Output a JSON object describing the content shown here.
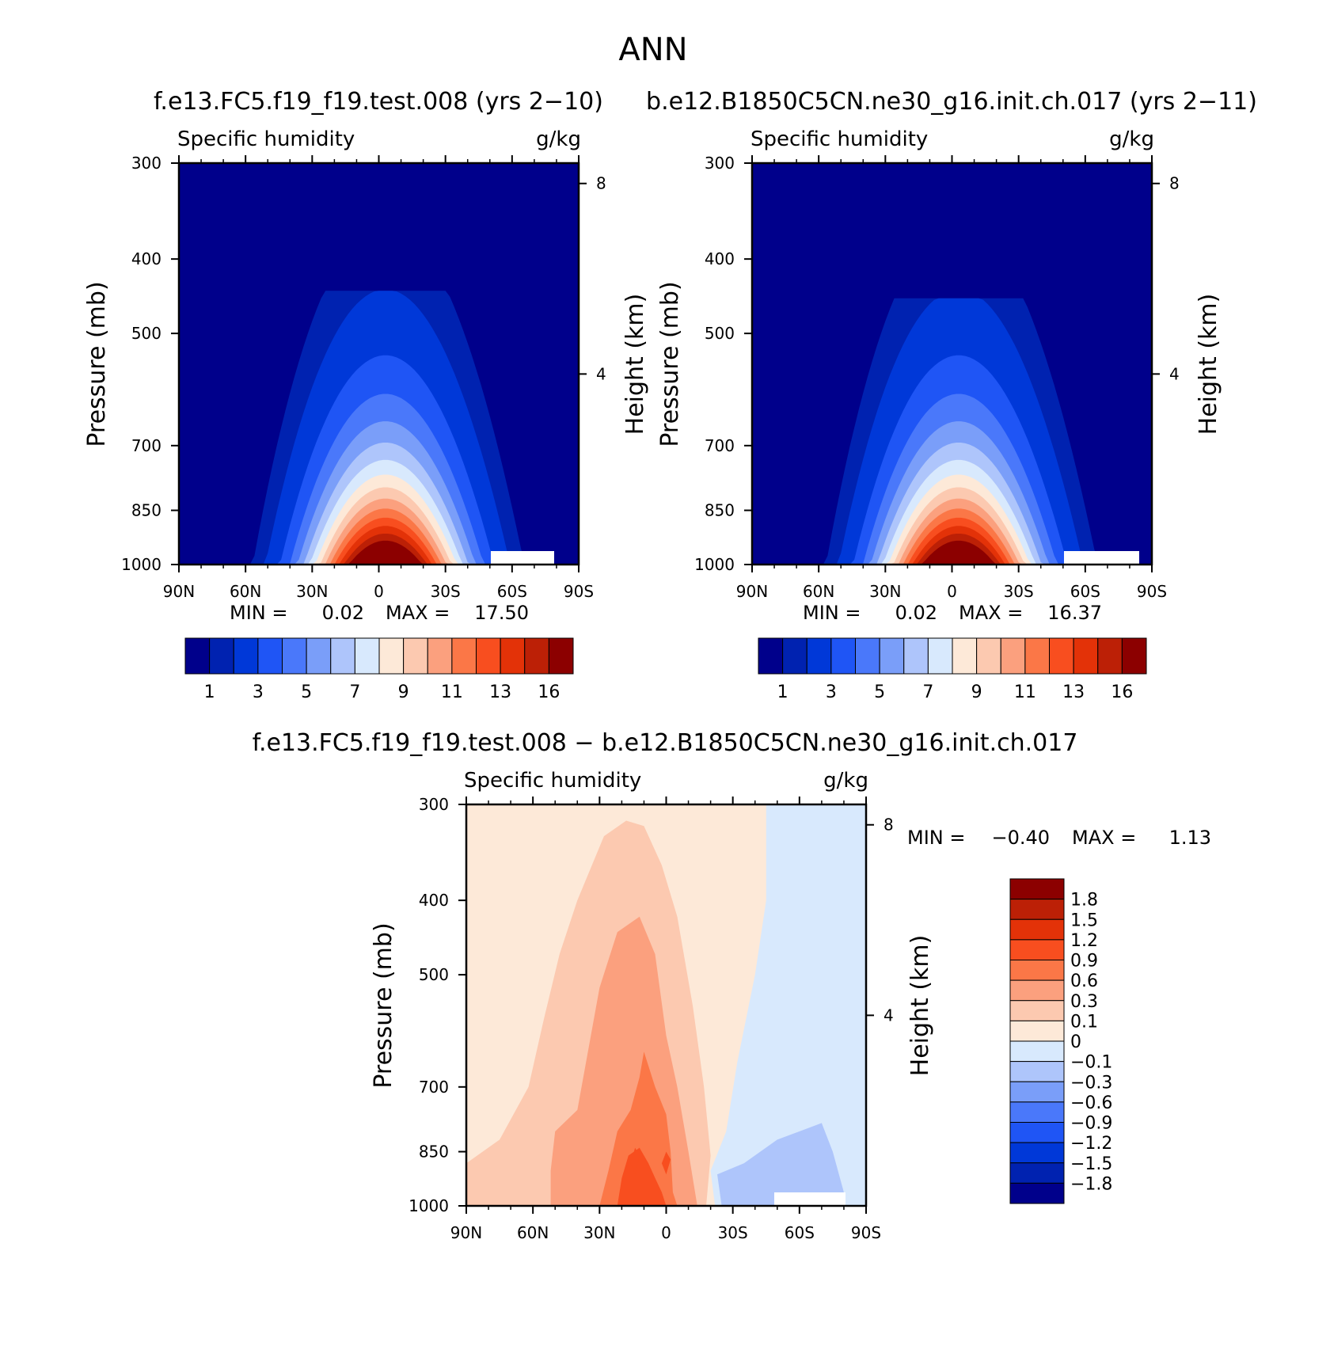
{
  "page": {
    "title": "ANN",
    "diff_title": "f.e13.FC5.f19_f19.test.008 − b.e12.B1850C5CN.ne30_g16.init.ch.017"
  },
  "chart_data": [
    {
      "type": "contour",
      "case_title": "f.e13.FC5.f19_f19.test.008 (yrs 2−10)",
      "variable": "Specific humidity",
      "units": "g/kg",
      "xlabel": "",
      "ylabel": "Pressure (mb)",
      "y2label": "Height (km)",
      "x_ticks": [
        "90N",
        "60N",
        "30N",
        "0",
        "30S",
        "60S",
        "90S"
      ],
      "y_ticks": [
        300,
        400,
        500,
        700,
        850,
        1000
      ],
      "y2_ticks": [
        8,
        4
      ],
      "min_label": "MIN =",
      "min": "0.02",
      "max_label": "MAX =",
      "max": "17.50",
      "levels_shown": [
        "1",
        "3",
        "5",
        "7",
        "9",
        "11",
        "13",
        "16"
      ],
      "peak_lat": -3,
      "top_pressure": 440,
      "colors": [
        "#00008b",
        "#0022b0",
        "#0038d8",
        "#1f55f5",
        "#4a78fa",
        "#7a9ef9",
        "#aec5fb",
        "#d8e9fd",
        "#fde9d8",
        "#fcc9b0",
        "#fba07e",
        "#fb7747",
        "#f84e1f",
        "#e33208",
        "#bc2006",
        "#8c0000"
      ]
    },
    {
      "type": "contour",
      "case_title": "b.e12.B1850C5CN.ne30_g16.init.ch.017 (yrs 2−11)",
      "variable": "Specific humidity",
      "units": "g/kg",
      "xlabel": "",
      "ylabel": "Pressure (mb)",
      "y2label": "Height (km)",
      "x_ticks": [
        "90N",
        "60N",
        "30N",
        "0",
        "30S",
        "60S",
        "90S"
      ],
      "y_ticks": [
        300,
        400,
        500,
        700,
        850,
        1000
      ],
      "y2_ticks": [
        8,
        4
      ],
      "min_label": "MIN =",
      "min": "0.02",
      "max_label": "MAX =",
      "max": "16.37",
      "levels_shown": [
        "1",
        "3",
        "5",
        "7",
        "9",
        "11",
        "13",
        "16"
      ],
      "peak_lat": -3,
      "top_pressure": 450,
      "colors": [
        "#00008b",
        "#0022b0",
        "#0038d8",
        "#1f55f5",
        "#4a78fa",
        "#7a9ef9",
        "#aec5fb",
        "#d8e9fd",
        "#fde9d8",
        "#fcc9b0",
        "#fba07e",
        "#fb7747",
        "#f84e1f",
        "#e33208",
        "#bc2006",
        "#8c0000"
      ]
    },
    {
      "type": "contour",
      "case_title": "",
      "variable": "Specific humidity",
      "units": "g/kg",
      "xlabel": "",
      "ylabel": "Pressure (mb)",
      "y2label": "Height (km)",
      "x_ticks": [
        "90N",
        "60N",
        "30N",
        "0",
        "30S",
        "60S",
        "90S"
      ],
      "y_ticks": [
        300,
        400,
        500,
        700,
        850,
        1000
      ],
      "y2_ticks": [
        8,
        4
      ],
      "min_label": "MIN =",
      "min": "−0.40",
      "max_label": "MAX =",
      "max": "1.13",
      "levels_shown": [
        "1.8",
        "1.5",
        "1.2",
        "0.9",
        "0.6",
        "0.3",
        "0.1",
        "0",
        "−0.1",
        "−0.3",
        "−0.6",
        "−0.9",
        "−1.2",
        "−1.5",
        "−1.8"
      ],
      "colors": [
        "#8c0000",
        "#bc2006",
        "#e33208",
        "#f84e1f",
        "#fb7747",
        "#fba07e",
        "#fcc9b0",
        "#fde9d8",
        "#d8e9fd",
        "#aec5fb",
        "#7a9ef9",
        "#4a78fa",
        "#1f55f5",
        "#0038d8",
        "#0022b0",
        "#00008b"
      ]
    }
  ]
}
